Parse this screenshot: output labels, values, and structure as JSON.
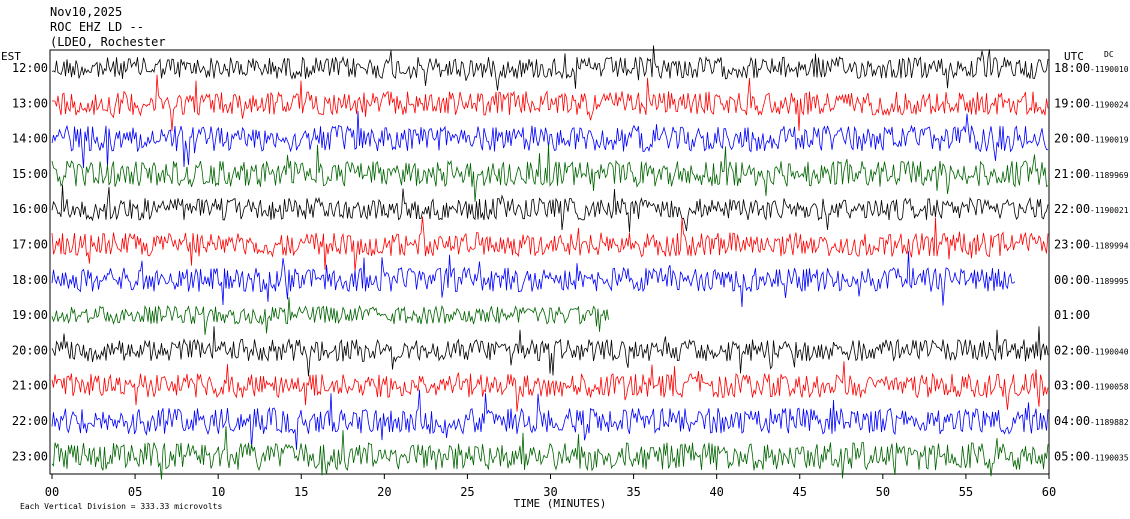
{
  "header": {
    "date": "Nov10,2025",
    "station": "ROC EHZ LD --",
    "network": "(LDEO, Rochester"
  },
  "labels": {
    "left_zone": "EST",
    "right_zone": "UTC",
    "dc": "DC",
    "xlabel": "TIME (MINUTES)",
    "scale_note": "Each Vertical Division = 333.33 microvolts"
  },
  "colors": {
    "black": "#000000",
    "red": "#ff0000",
    "blue": "#0000ff",
    "green": "#006400"
  },
  "chart_data": {
    "type": "line",
    "subtype": "helicorder",
    "xlabel": "TIME (MINUTES)",
    "xlim": [
      0,
      60
    ],
    "xticks": [
      "00",
      "05",
      "10",
      "15",
      "20",
      "25",
      "30",
      "35",
      "40",
      "45",
      "50",
      "55",
      "60"
    ],
    "rows": [
      {
        "est": "12:00",
        "utc": "18:00",
        "dc": "-1190010",
        "color": "#000000",
        "amp": 11,
        "end": 60
      },
      {
        "est": "13:00",
        "utc": "19:00",
        "dc": "-1190024",
        "color": "#ff0000",
        "amp": 12,
        "end": 60
      },
      {
        "est": "14:00",
        "utc": "20:00",
        "dc": "-1190019",
        "color": "#0000ff",
        "amp": 13,
        "end": 60
      },
      {
        "est": "15:00",
        "utc": "21:00",
        "dc": "-1189969",
        "color": "#006400",
        "amp": 13,
        "end": 60
      },
      {
        "est": "16:00",
        "utc": "22:00",
        "dc": "-1190021",
        "color": "#000000",
        "amp": 11,
        "end": 60
      },
      {
        "est": "17:00",
        "utc": "23:00",
        "dc": "-1189994",
        "color": "#ff0000",
        "amp": 12,
        "end": 60
      },
      {
        "est": "18:00",
        "utc": "00:00",
        "dc": "-1189995",
        "color": "#0000ff",
        "amp": 12,
        "end": 58
      },
      {
        "est": "19:00",
        "utc": "01:00",
        "dc": "",
        "color": "#006400",
        "amp": 9,
        "end": 33.5
      },
      {
        "est": "20:00",
        "utc": "02:00",
        "dc": "-1190040",
        "color": "#000000",
        "amp": 11,
        "end": 60
      },
      {
        "est": "21:00",
        "utc": "03:00",
        "dc": "-1190058",
        "color": "#ff0000",
        "amp": 12,
        "end": 60
      },
      {
        "est": "22:00",
        "utc": "04:00",
        "dc": "-1189882",
        "color": "#0000ff",
        "amp": 13,
        "end": 60
      },
      {
        "est": "23:00",
        "utc": "05:00",
        "dc": "-1190035",
        "color": "#006400",
        "amp": 14,
        "end": 60
      }
    ]
  }
}
